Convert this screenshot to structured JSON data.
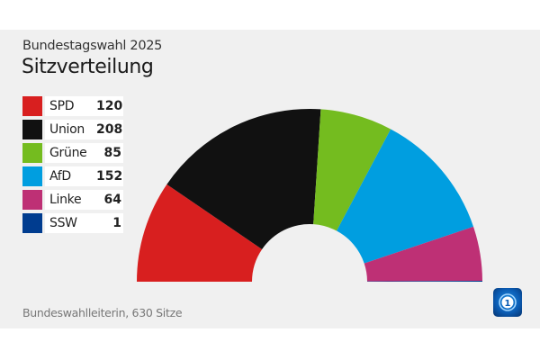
{
  "header": {
    "subtitle": "Bundestagswahl 2025",
    "title": "Sitzverteilung"
  },
  "footer": {
    "source": "Bundeswahlleiterin, 630 Sitze",
    "logo_icon": "ard-tagesschau-logo-icon"
  },
  "chart_data": {
    "type": "pie",
    "variant": "semicircle-parliament",
    "title": "Sitzverteilung",
    "subtitle": "Bundestagswahl 2025",
    "total": 630,
    "legend_position": "left",
    "series": [
      {
        "name": "SPD",
        "value": 120,
        "color": "#d81f1f"
      },
      {
        "name": "Union",
        "value": 208,
        "color": "#111111"
      },
      {
        "name": "Grüne",
        "value": 85,
        "color": "#74bc1f"
      },
      {
        "name": "AfD",
        "value": 152,
        "color": "#009ee0"
      },
      {
        "name": "Linke",
        "value": 64,
        "color": "#be3075"
      },
      {
        "name": "SSW",
        "value": 1,
        "color": "#003c8f"
      }
    ]
  }
}
